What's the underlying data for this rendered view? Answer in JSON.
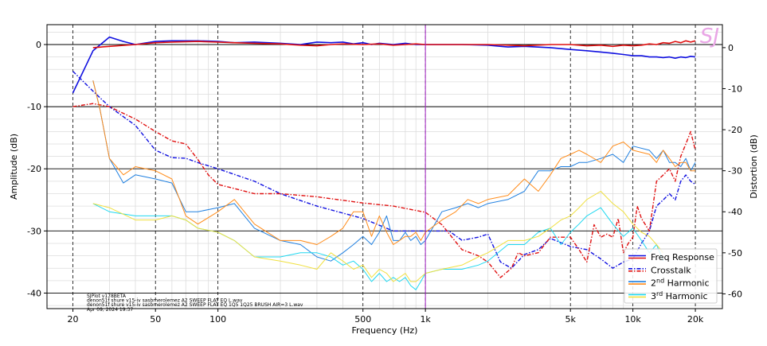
{
  "chart_data": {
    "type": "line",
    "xscale": "log",
    "xlim": [
      15,
      27000
    ],
    "ylim": [
      -42.5,
      3.2
    ],
    "y2lim": [
      -63.6,
      5.6
    ],
    "xlabel": "Frequency (Hz)",
    "ylabel": "Amplitude (dB)",
    "y2label": "Distortion (dB)",
    "x_ticks": [
      {
        "value": 20,
        "label": "20"
      },
      {
        "value": 50,
        "label": "50"
      },
      {
        "value": 100,
        "label": "100"
      },
      {
        "value": 500,
        "label": "500"
      },
      {
        "value": 1000,
        "label": "1k"
      },
      {
        "value": 5000,
        "label": "5k"
      },
      {
        "value": 10000,
        "label": "10k"
      },
      {
        "value": 20000,
        "label": "20k"
      }
    ],
    "y_ticks": [
      0,
      -10,
      -20,
      -30,
      -40
    ],
    "y2_ticks": [
      0,
      -10,
      -20,
      -30,
      -40,
      -50,
      -60
    ],
    "marker_x": 1000,
    "marker_color": "#a020c0",
    "watermark": "SJ",
    "footnote": [
      "SJPlot v178BETA",
      "denon51f shure v15-iv sasbmerolemez A2 SWEEP FLAT EQ L.wav",
      "denon51f shure v15-iv sasbmerolemez A2 SWEEP FLAT EQ 1Q5 1Q25 BRUSH AIR=3 L.wav",
      "Apr 09, 2024 19:37"
    ],
    "legend_position": "bottom-right",
    "legend": [
      {
        "label": "Freq Response",
        "colors": [
          "#1010e0",
          "#e01010"
        ],
        "dash": "solid"
      },
      {
        "label": "Crosstalk",
        "colors": [
          "#1010e0",
          "#e01010"
        ],
        "dash": "dashdot"
      },
      {
        "label": "2nd Harmonic",
        "label_base": "2",
        "label_sup": "nd",
        "label_rest": " Harmonic",
        "colors": [
          "#2080e0",
          "#ff8c1a"
        ],
        "dash": "solid"
      },
      {
        "label": "3rd Harmonic",
        "label_base": "3",
        "label_sup": "rd",
        "label_rest": " Harmonic",
        "colors": [
          "#20d8f0",
          "#f0e040"
        ],
        "dash": "solid"
      }
    ],
    "series": [
      {
        "axis": "left",
        "color": "#1010e0",
        "width": 1.6,
        "dash": "solid",
        "x": [
          20,
          25,
          30,
          35,
          40,
          50,
          60,
          80,
          100,
          120,
          150,
          200,
          250,
          300,
          350,
          400,
          450,
          500,
          550,
          600,
          700,
          800,
          900,
          1000,
          1200,
          1500,
          2000,
          2500,
          3000,
          4000,
          5000,
          6000,
          7000,
          8000,
          9000,
          10000,
          11000,
          12000,
          13000,
          14000,
          15000,
          16000,
          17000,
          18000,
          19000,
          20000
        ],
        "y": [
          -7.8,
          -1.0,
          1.2,
          0.5,
          0.0,
          0.5,
          0.6,
          0.6,
          0.5,
          0.3,
          0.4,
          0.2,
          0.0,
          0.4,
          0.3,
          0.4,
          0.1,
          0.3,
          0.0,
          0.2,
          0.0,
          0.2,
          0.0,
          0.0,
          0.0,
          0.0,
          -0.1,
          -0.4,
          -0.3,
          -0.5,
          -0.8,
          -1.0,
          -1.2,
          -1.4,
          -1.6,
          -1.8,
          -1.8,
          -2.0,
          -2.0,
          -2.1,
          -2.0,
          -2.2,
          -2.0,
          -2.1,
          -1.9,
          -2.0
        ]
      },
      {
        "axis": "left",
        "color": "#e01010",
        "width": 1.6,
        "dash": "solid",
        "x": [
          25,
          30,
          40,
          50,
          60,
          80,
          100,
          120,
          150,
          200,
          250,
          300,
          350,
          400,
          500,
          600,
          700,
          800,
          900,
          1000,
          1500,
          2000,
          2500,
          3000,
          4000,
          5000,
          6000,
          7000,
          8000,
          9000,
          10000,
          11000,
          12000,
          13000,
          14000,
          15000,
          16000,
          17000,
          18000,
          19000,
          20000
        ],
        "y": [
          -0.5,
          -0.3,
          0.0,
          0.3,
          0.4,
          0.5,
          0.4,
          0.3,
          0.2,
          0.1,
          -0.1,
          -0.2,
          0.0,
          0.1,
          0.0,
          0.1,
          -0.1,
          0.0,
          0.1,
          0.0,
          0.0,
          0.0,
          -0.1,
          -0.2,
          0.0,
          0.0,
          -0.2,
          -0.1,
          -0.3,
          -0.1,
          -0.2,
          -0.1,
          0.1,
          0.0,
          0.3,
          0.2,
          0.5,
          0.3,
          0.6,
          0.4,
          0.6
        ]
      },
      {
        "axis": "left",
        "color": "#1010e0",
        "width": 1.4,
        "dash": "dashdot",
        "x": [
          20,
          25,
          30,
          40,
          50,
          60,
          70,
          80,
          100,
          150,
          200,
          300,
          500,
          700,
          1000,
          1300,
          1500,
          1800,
          2000,
          2300,
          2600,
          3000,
          3500,
          4000,
          5000,
          6000,
          7000,
          8000,
          9000,
          10000,
          11000,
          12000,
          13000,
          14000,
          15000,
          16000,
          17000,
          18000,
          19000,
          20000
        ],
        "y": [
          -4.3,
          -7.5,
          -10.0,
          -13.0,
          -17.0,
          -18.2,
          -18.3,
          -19.0,
          -20.0,
          -22.0,
          -24.0,
          -26.0,
          -28.0,
          -30.0,
          -30.0,
          -30.0,
          -31.5,
          -31.0,
          -30.5,
          -35.0,
          -36.0,
          -33.8,
          -33.0,
          -31.2,
          -32.5,
          -33.0,
          -34.5,
          -36.0,
          -35.0,
          -34.5,
          -32.0,
          -30.0,
          -26.0,
          -25.0,
          -24.0,
          -25.0,
          -22.0,
          -21.0,
          -22.0,
          -22.5
        ]
      },
      {
        "axis": "left",
        "color": "#e01010",
        "width": 1.4,
        "dash": "dashdot",
        "x": [
          20,
          25,
          30,
          40,
          50,
          60,
          70,
          80,
          90,
          100,
          150,
          200,
          300,
          500,
          700,
          1000,
          1200,
          1500,
          1800,
          2000,
          2300,
          2600,
          2800,
          3000,
          3500,
          4000,
          5000,
          5500,
          6000,
          6500,
          7000,
          7500,
          8000,
          8500,
          9000,
          9500,
          10000,
          10500,
          11000,
          12000,
          13000,
          14000,
          15000,
          16000,
          17000,
          18000,
          19000,
          20000
        ],
        "y": [
          -10.0,
          -9.5,
          -10.0,
          -12.0,
          -14.0,
          -15.5,
          -16.0,
          -18.5,
          -21.0,
          -22.5,
          -24.0,
          -24.0,
          -24.5,
          -25.5,
          -26.0,
          -27.0,
          -29.0,
          -33.0,
          -34.0,
          -35.0,
          -37.5,
          -36.0,
          -33.5,
          -34.0,
          -33.5,
          -31.0,
          -31.0,
          -33.0,
          -35.0,
          -29.0,
          -31.0,
          -30.5,
          -31.0,
          -28.0,
          -33.5,
          -32.0,
          -31.0,
          -26.0,
          -28.0,
          -30.0,
          -22.0,
          -21.0,
          -20.0,
          -22.0,
          -18.0,
          -16.0,
          -14.0,
          -17.0
        ]
      },
      {
        "axis": "right",
        "color": "#2080e0",
        "width": 1.0,
        "dash": "solid",
        "x": [
          25,
          27,
          30,
          35,
          40,
          50,
          60,
          70,
          80,
          100,
          120,
          150,
          200,
          250,
          300,
          350,
          400,
          450,
          500,
          550,
          600,
          650,
          700,
          750,
          800,
          850,
          900,
          950,
          1000,
          1200,
          1400,
          1600,
          1800,
          2000,
          2500,
          3000,
          3500,
          4000,
          4500,
          5000,
          5500,
          6000,
          7000,
          8000,
          9000,
          10000,
          12000,
          13000,
          14000,
          15000,
          16000,
          17000,
          18000,
          19000,
          20000
        ],
        "y": [
          -8,
          -15,
          -27,
          -33,
          -31,
          -32,
          -33,
          -40,
          -40,
          -39,
          -38,
          -44,
          -47,
          -48,
          -51,
          -52,
          -50,
          -48,
          -46,
          -48,
          -45,
          -41,
          -47,
          -47,
          -45,
          -47,
          -46,
          -48,
          -47,
          -40,
          -39,
          -38,
          -39,
          -38,
          -37,
          -35,
          -30,
          -30,
          -29,
          -29,
          -28,
          -28,
          -27,
          -26,
          -28,
          -24,
          -25,
          -27,
          -25,
          -28,
          -28,
          -29,
          -27,
          -30,
          -28
        ]
      },
      {
        "axis": "right",
        "color": "#ff8c1a",
        "width": 1.0,
        "dash": "solid",
        "x": [
          25,
          27,
          30,
          35,
          40,
          50,
          60,
          70,
          80,
          100,
          120,
          150,
          200,
          250,
          300,
          350,
          400,
          450,
          500,
          550,
          600,
          650,
          700,
          750,
          800,
          850,
          900,
          950,
          1000,
          1200,
          1400,
          1600,
          1800,
          2000,
          2500,
          3000,
          3500,
          4000,
          4500,
          5000,
          5500,
          6000,
          7000,
          8000,
          9000,
          10000,
          12000,
          13000,
          14000,
          15000,
          16000,
          17000,
          18000,
          19000,
          20000
        ],
        "y": [
          -8,
          -15,
          -27,
          -31,
          -29,
          -30,
          -32,
          -41,
          -43,
          -40,
          -37,
          -43,
          -47,
          -47,
          -48,
          -46,
          -44,
          -40,
          -40,
          -46,
          -41,
          -45,
          -48,
          -47,
          -46,
          -46,
          -45,
          -47,
          -45,
          -42,
          -40,
          -37,
          -38,
          -37,
          -36,
          -32,
          -35,
          -31,
          -27,
          -26,
          -25,
          -26,
          -28,
          -24,
          -23,
          -25,
          -26,
          -28,
          -25,
          -27,
          -29,
          -28,
          -28,
          -30,
          -30
        ]
      },
      {
        "axis": "right",
        "color": "#20d8f0",
        "width": 1.0,
        "dash": "solid",
        "x": [
          25,
          30,
          40,
          50,
          60,
          70,
          80,
          100,
          120,
          150,
          200,
          250,
          300,
          350,
          400,
          450,
          500,
          550,
          600,
          650,
          700,
          750,
          800,
          850,
          900,
          950,
          1000,
          1200,
          1500,
          1800,
          2000,
          2500,
          3000,
          3500,
          4000,
          4500,
          5000,
          5500,
          6000,
          7000,
          8000,
          9000,
          10000,
          11000,
          12000,
          13000,
          14000
        ],
        "y": [
          -38,
          -40,
          -41,
          -41,
          -41,
          -42,
          -44,
          -45,
          -47,
          -51,
          -51,
          -50,
          -50,
          -51,
          -53,
          -52,
          -54,
          -57,
          -55,
          -57,
          -56,
          -57,
          -56,
          -58,
          -59,
          -57,
          -55,
          -54,
          -54,
          -53,
          -52,
          -48,
          -48,
          -45,
          -44,
          -48,
          -45,
          -43,
          -41,
          -39,
          -43,
          -46,
          -44,
          -47,
          -50,
          -48,
          -52
        ]
      },
      {
        "axis": "right",
        "color": "#f0e040",
        "width": 1.0,
        "dash": "solid",
        "x": [
          25,
          30,
          40,
          50,
          60,
          70,
          80,
          100,
          120,
          150,
          200,
          250,
          300,
          350,
          400,
          450,
          500,
          550,
          600,
          650,
          700,
          750,
          800,
          850,
          900,
          950,
          1000,
          1200,
          1500,
          1800,
          2000,
          2500,
          3000,
          3500,
          4000,
          4500,
          5000,
          5500,
          6000,
          7000,
          8000,
          9000,
          10000,
          11000,
          12000,
          13000,
          14000
        ],
        "y": [
          -38,
          -39,
          -42,
          -42,
          -41,
          -42,
          -44,
          -45,
          -47,
          -51,
          -52,
          -53,
          -54,
          -50,
          -52,
          -54,
          -53,
          -56,
          -54,
          -55,
          -57,
          -56,
          -55,
          -57,
          -57,
          -56,
          -55,
          -54,
          -53,
          -51,
          -50,
          -47,
          -47,
          -46,
          -44,
          -42,
          -41,
          -39,
          -37,
          -35,
          -38,
          -40,
          -43,
          -45,
          -46,
          -48,
          -50
        ]
      }
    ]
  }
}
